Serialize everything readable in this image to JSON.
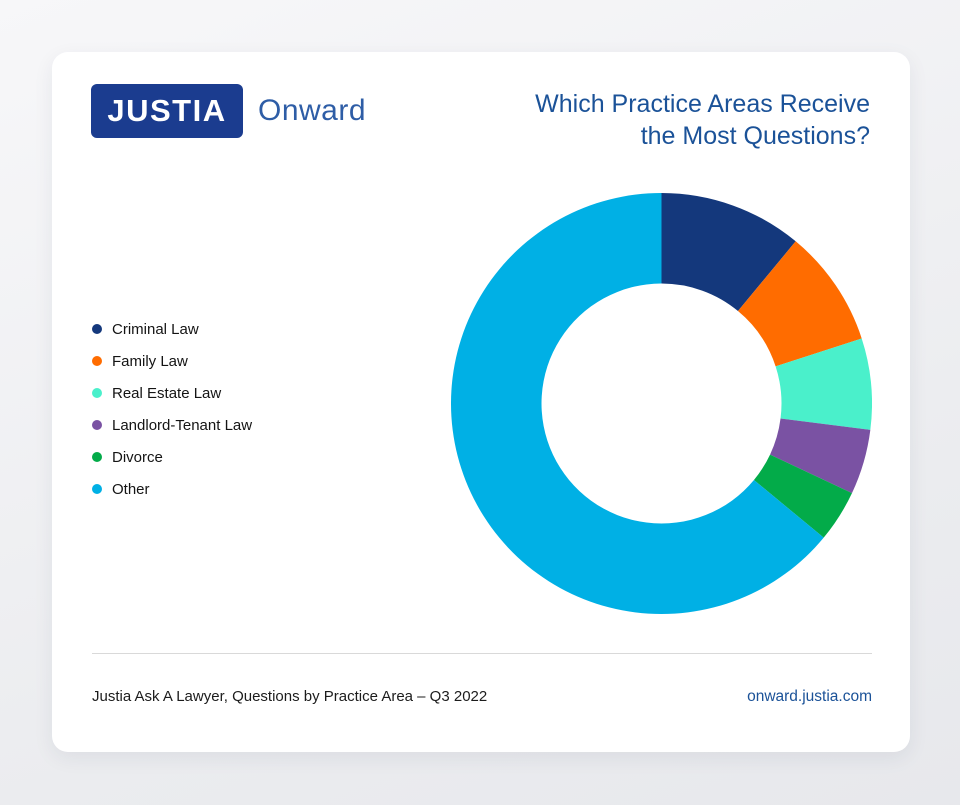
{
  "header": {
    "logo_text": "JUSTIA",
    "logo_suffix": "Onward",
    "logo_box_color": "#1b3c8f",
    "logo_suffix_color": "#2e5da6",
    "title_line1": "Which Practice Areas Receive",
    "title_line2": "the Most Questions?",
    "title_color": "#1b5298"
  },
  "chart_data": {
    "type": "pie",
    "subtype": "donut",
    "title": "Which Practice Areas Receive the Most Questions?",
    "values_are": "percent share, estimated from arc angles (no numeric labels shown)",
    "start_angle_deg": 0,
    "direction": "clockwise",
    "inner_radius_ratio": 0.57,
    "legend_position": "left",
    "segments": [
      {
        "label": "Criminal Law",
        "value": 11,
        "color": "#14387c"
      },
      {
        "label": "Family Law",
        "value": 9,
        "color": "#ff6c00"
      },
      {
        "label": "Real Estate Law",
        "value": 7,
        "color": "#4af0cb"
      },
      {
        "label": "Landlord-Tenant Law",
        "value": 5,
        "color": "#7a52a3"
      },
      {
        "label": "Divorce",
        "value": 4,
        "color": "#03ab49"
      },
      {
        "label": "Other",
        "value": 64,
        "color": "#00b0e5"
      }
    ]
  },
  "footer": {
    "source": "Justia Ask A Lawyer, Questions by Practice Area – Q3 2022",
    "link": "onward.justia.com"
  }
}
